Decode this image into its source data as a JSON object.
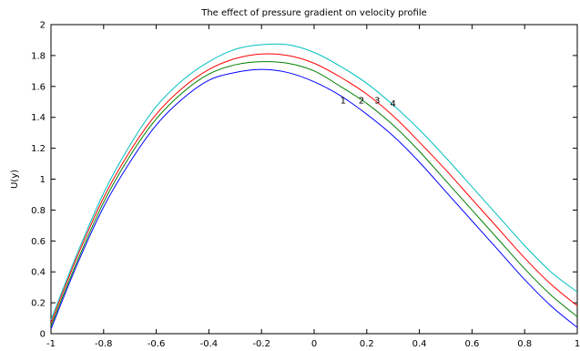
{
  "chart_data": {
    "type": "line",
    "title": "The effect of pressure gradient on velocity profile",
    "xlabel": "",
    "ylabel": "U(y)",
    "xlim": [
      -1,
      1
    ],
    "ylim": [
      0,
      2
    ],
    "xticks": [
      -1,
      -0.8,
      -0.6,
      -0.4,
      -0.2,
      0,
      0.2,
      0.4,
      0.6,
      0.8,
      1
    ],
    "xtick_labels": [
      "-1",
      "-0.8",
      "-0.6",
      "-0.4",
      "-0.2",
      "0",
      "0.2",
      "0.4",
      "0.6",
      "0.8",
      "1"
    ],
    "yticks": [
      0,
      0.2,
      0.4,
      0.6,
      0.8,
      1,
      1.2,
      1.4,
      1.6,
      1.8,
      2
    ],
    "ytick_labels": [
      "0",
      "0.2",
      "0.4",
      "0.6",
      "0.8",
      "1",
      "1.2",
      "1.4",
      "1.6",
      "1.8",
      "2"
    ],
    "grid": false,
    "x": [
      -1,
      -0.9,
      -0.8,
      -0.7,
      -0.6,
      -0.5,
      -0.4,
      -0.3,
      -0.2,
      -0.1,
      0,
      0.1,
      0.2,
      0.3,
      0.4,
      0.5,
      0.6,
      0.7,
      0.8,
      0.9,
      1
    ],
    "series": [
      {
        "color": "#0000ff",
        "values": [
          0.03,
          0.45,
          0.82,
          1.11,
          1.35,
          1.52,
          1.64,
          1.69,
          1.71,
          1.69,
          1.63,
          1.54,
          1.42,
          1.28,
          1.11,
          0.92,
          0.73,
          0.54,
          0.35,
          0.18,
          0.04
        ]
      },
      {
        "color": "#008000",
        "values": [
          0.05,
          0.47,
          0.85,
          1.15,
          1.39,
          1.56,
          1.68,
          1.74,
          1.76,
          1.75,
          1.7,
          1.6,
          1.49,
          1.35,
          1.18,
          0.99,
          0.8,
          0.61,
          0.42,
          0.25,
          0.11
        ]
      },
      {
        "color": "#ff0000",
        "values": [
          0.07,
          0.5,
          0.88,
          1.18,
          1.42,
          1.59,
          1.71,
          1.78,
          1.81,
          1.8,
          1.75,
          1.66,
          1.55,
          1.41,
          1.24,
          1.06,
          0.87,
          0.68,
          0.49,
          0.32,
          0.18
        ]
      },
      {
        "color": "#00bfbf",
        "values": [
          0.09,
          0.52,
          0.91,
          1.22,
          1.47,
          1.64,
          1.76,
          1.84,
          1.87,
          1.87,
          1.82,
          1.73,
          1.62,
          1.48,
          1.32,
          1.14,
          0.95,
          0.76,
          0.57,
          0.4,
          0.27
        ]
      }
    ],
    "annotations": [
      {
        "text": "1",
        "x": 0.11,
        "y": 1.51
      },
      {
        "text": "2",
        "x": 0.18,
        "y": 1.51
      },
      {
        "text": "3",
        "x": 0.24,
        "y": 1.51
      },
      {
        "text": "4",
        "x": 0.3,
        "y": 1.49
      }
    ]
  }
}
